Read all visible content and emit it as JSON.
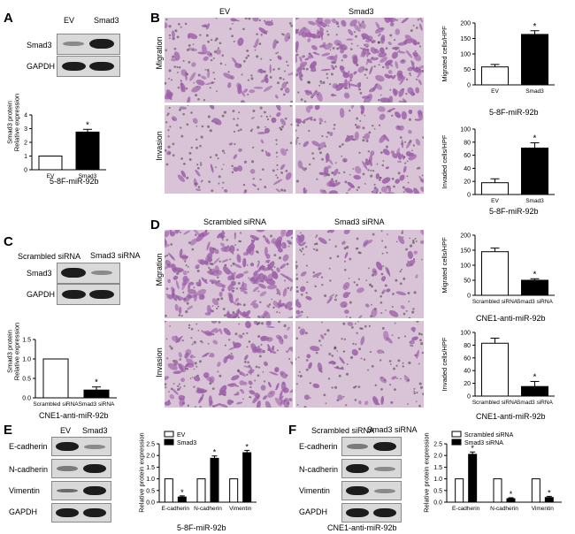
{
  "panels": {
    "A": {
      "letter": "A",
      "lanes": [
        "EV",
        "Smad3"
      ],
      "rows": [
        "Smad3",
        "GAPDH"
      ],
      "ylabel": [
        "Smad3 protein",
        "Relative expression"
      ],
      "xlabel": "5-8F-miR-92b"
    },
    "B": {
      "letter": "B",
      "cols": [
        "EV",
        "Smad3"
      ],
      "rows": [
        "Migration",
        "Invasion"
      ],
      "xlabel": "5-8F-miR-92b"
    },
    "C": {
      "letter": "C",
      "lanes": [
        "Scrambled siRNA",
        "Smad3 siRNA"
      ],
      "rows": [
        "Smad3",
        "GAPDH"
      ],
      "ylabel": [
        "Smad3 protein",
        "Relative expression"
      ],
      "xlabel": "CNE1-anti-miR-92b"
    },
    "D": {
      "letter": "D",
      "cols": [
        "Scrambled siRNA",
        "Smad3 siRNA"
      ],
      "rows": [
        "Migration",
        "Invasion"
      ],
      "xlabel": "CNE1-anti-miR-92b"
    },
    "E": {
      "letter": "E",
      "lanes": [
        "EV",
        "Smad3"
      ],
      "rows": [
        "E-cadherin",
        "N-cadherin",
        "Vimentin",
        "GAPDH"
      ],
      "ylabel": "Relative protein expression",
      "xlabel": "5-8F-miR-92b"
    },
    "F": {
      "letter": "F",
      "lanes": [
        "Scrambled siRNA",
        "Smad3 siRNA"
      ],
      "rows": [
        "E-cadherin",
        "N-cadherin",
        "Vimentin",
        "GAPDH"
      ],
      "ylabel": "Relative protein expression",
      "xlabel": "CNE1-anti-miR-92b"
    }
  },
  "chart_data": [
    {
      "id": "A-bar",
      "type": "bar",
      "categories": [
        "EV",
        "Smad3"
      ],
      "values": [
        1.0,
        2.75
      ],
      "errors": [
        0,
        0.2
      ],
      "ylim": [
        0,
        4
      ],
      "yticks": [
        "0",
        "1",
        "2",
        "3",
        "4"
      ],
      "sig": [
        false,
        true
      ],
      "star": "*"
    },
    {
      "id": "B-mig",
      "type": "bar",
      "categories": [
        "EV",
        "Smad3"
      ],
      "values": [
        58,
        163
      ],
      "errors": [
        8,
        12
      ],
      "ylim": [
        0,
        200
      ],
      "yticks": [
        "0",
        "50",
        "100",
        "150",
        "200"
      ],
      "ylabel": "Migrated cells/HPF",
      "sig": [
        false,
        true
      ],
      "star": "*"
    },
    {
      "id": "B-inv",
      "type": "bar",
      "categories": [
        "EV",
        "Smad3"
      ],
      "values": [
        18,
        71
      ],
      "errors": [
        6,
        8
      ],
      "ylim": [
        0,
        100
      ],
      "yticks": [
        "0",
        "20",
        "40",
        "60",
        "80",
        "100"
      ],
      "ylabel": "Invaded cells/HPF",
      "sig": [
        false,
        true
      ],
      "star": "*"
    },
    {
      "id": "C-bar",
      "type": "bar",
      "categories": [
        "Scrambled siRNA",
        "Smad3 siRNA"
      ],
      "values": [
        1.0,
        0.2
      ],
      "errors": [
        0,
        0.08
      ],
      "ylim": [
        0,
        1.5
      ],
      "yticks": [
        "0.0",
        "0.5",
        "1.0",
        "1.5"
      ],
      "sig": [
        false,
        true
      ],
      "star": "*"
    },
    {
      "id": "D-mig",
      "type": "bar",
      "categories": [
        "Scrambled siRNA",
        "Smad3 siRNA"
      ],
      "values": [
        145,
        50
      ],
      "errors": [
        12,
        5
      ],
      "ylim": [
        0,
        200
      ],
      "yticks": [
        "0",
        "50",
        "100",
        "150",
        "200"
      ],
      "ylabel": "Migrated cells/HPF",
      "sig": [
        false,
        true
      ],
      "star": "*"
    },
    {
      "id": "D-inv",
      "type": "bar",
      "categories": [
        "Scrambled siRNA",
        "Smad3 siRNA"
      ],
      "values": [
        83,
        15
      ],
      "errors": [
        8,
        8
      ],
      "ylim": [
        0,
        100
      ],
      "yticks": [
        "0",
        "20",
        "40",
        "60",
        "80",
        "100"
      ],
      "ylabel": "Invaded cells/HPF",
      "sig": [
        false,
        true
      ],
      "star": "*"
    },
    {
      "id": "E-bar",
      "type": "bar",
      "categories": [
        "E-cadherin",
        "N-cadherin",
        "Vimentin"
      ],
      "series": [
        {
          "name": "EV",
          "values": [
            1.0,
            1.0,
            1.0
          ],
          "errors": [
            0,
            0,
            0
          ]
        },
        {
          "name": "Smad3",
          "values": [
            0.22,
            1.88,
            2.12
          ],
          "errors": [
            0.05,
            0.1,
            0.1
          ]
        }
      ],
      "ylim": [
        0,
        2.5
      ],
      "yticks": [
        "0.0",
        "0.5",
        "1.0",
        "1.5",
        "2.0",
        "2.5"
      ],
      "legend": "top-left",
      "star": "*"
    },
    {
      "id": "F-bar",
      "type": "bar",
      "categories": [
        "E-cadherin",
        "N-cadherin",
        "Vimentin"
      ],
      "series": [
        {
          "name": "Scrambled siRNA",
          "values": [
            1.0,
            1.0,
            1.0
          ],
          "errors": [
            0,
            0,
            0
          ]
        },
        {
          "name": "Smad3 siRNA",
          "values": [
            2.05,
            0.15,
            0.2
          ],
          "errors": [
            0.1,
            0.04,
            0.05
          ]
        }
      ],
      "ylim": [
        0,
        2.5
      ],
      "yticks": [
        "0.0",
        "0.5",
        "1.0",
        "1.5",
        "2.0",
        "2.5"
      ],
      "legend": "top-left",
      "star": "*"
    }
  ],
  "colors": {
    "bar_control": "#ffffff",
    "bar_treated": "#000000",
    "stain": "#9b5ea8",
    "stain_bg": "#d9c3d6"
  }
}
